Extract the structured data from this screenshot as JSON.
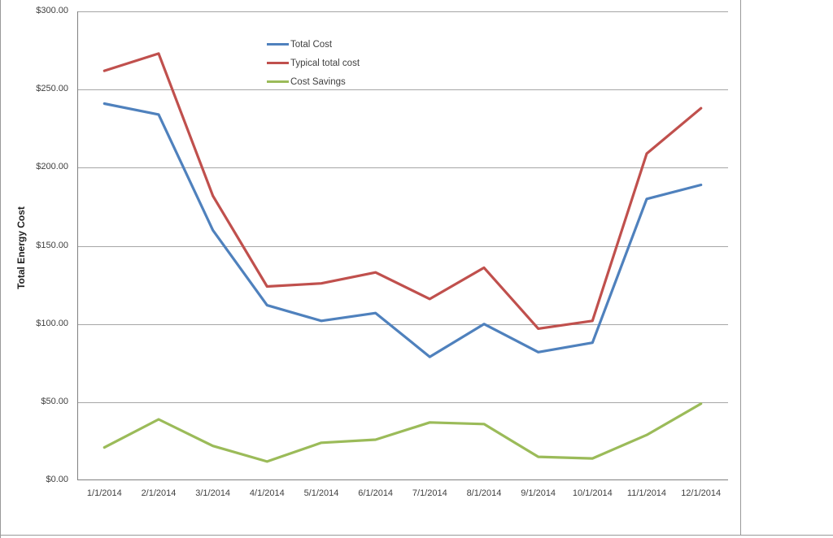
{
  "chart_data": {
    "type": "line",
    "title": "",
    "xlabel": "",
    "ylabel": "Total Energy Cost",
    "categories": [
      "1/1/2014",
      "2/1/2014",
      "3/1/2014",
      "4/1/2014",
      "5/1/2014",
      "6/1/2014",
      "7/1/2014",
      "8/1/2014",
      "9/1/2014",
      "10/1/2014",
      "11/1/2014",
      "12/1/2014"
    ],
    "series": [
      {
        "name": "Total Cost",
        "color": "#4F81BD",
        "values": [
          241,
          234,
          160,
          112,
          102,
          107,
          79,
          100,
          82,
          88,
          180,
          189
        ]
      },
      {
        "name": "Typical total cost",
        "color": "#C0504D",
        "values": [
          262,
          273,
          182,
          124,
          126,
          133,
          116,
          136,
          97,
          102,
          209,
          238
        ]
      },
      {
        "name": "Cost Savings",
        "color": "#9BBB59",
        "values": [
          21,
          39,
          22,
          12,
          24,
          26,
          37,
          36,
          15,
          14,
          29,
          49
        ]
      }
    ],
    "ylim": [
      0,
      300
    ],
    "ytick_step": 50,
    "ytick_labels_top_to_bottom": [
      "$300.00",
      "$250.00",
      "$200.00",
      "$150.00",
      "$100.00",
      "$50.00",
      "$0.00"
    ],
    "grid": true,
    "legend_position": "top-center"
  },
  "colors": {
    "grid": "#A6A6A6",
    "axis": "#808080",
    "frame": "#999999",
    "tick_text": "#3F3F3F"
  }
}
